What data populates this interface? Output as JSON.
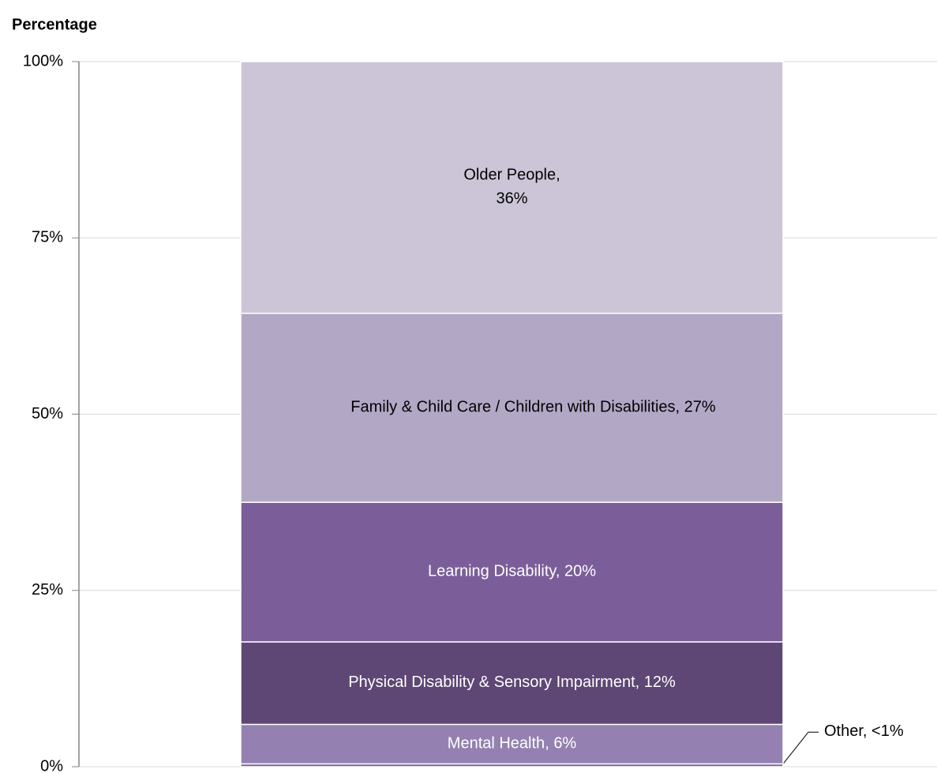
{
  "chart_data": {
    "type": "stacked_bar",
    "y_label": "Percentage",
    "categories": [
      null
    ],
    "series": [
      {
        "name": "Other",
        "color": "#7b5e99",
        "values": [
          0.4
        ],
        "value_labels": [
          "<1%"
        ]
      },
      {
        "name": "Mental Health",
        "color": "#9481b1",
        "values": [
          5.6
        ],
        "value_labels": [
          "6%"
        ]
      },
      {
        "name": "Physical Disability & Sensory Impairment",
        "color": "#5e4675",
        "values": [
          11.7
        ],
        "value_labels": [
          "12%"
        ]
      },
      {
        "name": "Learning Disability",
        "color": "#7b5e99",
        "values": [
          19.8
        ],
        "value_labels": [
          "20%"
        ]
      },
      {
        "name": "Family & Child Care / Children with Disabilities",
        "color": "#b2a8c5",
        "values": [
          26.8
        ],
        "value_labels": [
          "27%"
        ]
      },
      {
        "name": "Older People",
        "color": "#ccc5d7",
        "values": [
          35.7
        ],
        "value_labels": [
          "36%"
        ]
      }
    ],
    "ylim": [
      0,
      100
    ],
    "yticks": [
      {
        "value": 0,
        "label": "0%"
      },
      {
        "value": 25,
        "label": "25%"
      },
      {
        "value": 50,
        "label": "50%"
      },
      {
        "value": 75,
        "label": "75%"
      },
      {
        "value": 100,
        "label": "100%"
      }
    ],
    "grid": true
  }
}
